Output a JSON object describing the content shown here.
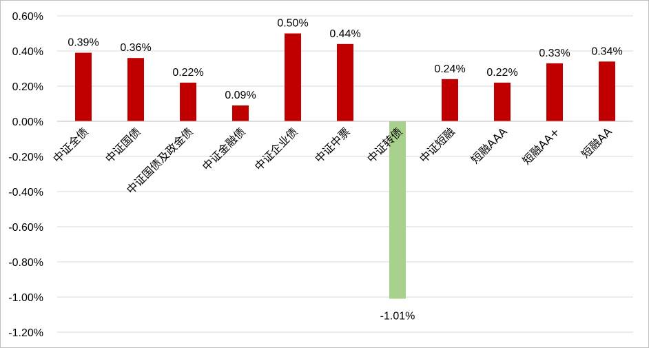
{
  "chart_data": {
    "type": "bar",
    "categories": [
      "中证全债",
      "中证国债",
      "中证国债及政金债",
      "中证金融债",
      "中证企业债",
      "中证中票",
      "中证转债",
      "中证短融",
      "短融AAA",
      "短融AA+",
      "短融AA"
    ],
    "values": [
      0.39,
      0.36,
      0.22,
      0.09,
      0.5,
      0.44,
      -1.01,
      0.24,
      0.22,
      0.33,
      0.34
    ],
    "data_labels": [
      "0.39%",
      "0.36%",
      "0.22%",
      "0.09%",
      "0.50%",
      "0.44%",
      "-1.01%",
      "0.24%",
      "0.22%",
      "0.33%",
      "0.34%"
    ],
    "unit": "%",
    "ylim": [
      -1.2,
      0.6
    ],
    "yticks": [
      0.6,
      0.4,
      0.2,
      0.0,
      -0.2,
      -0.4,
      -0.6,
      -0.8,
      -1.0,
      -1.2
    ],
    "ytick_labels": [
      "0.60%",
      "0.40%",
      "0.20%",
      "0.00%",
      "-0.20%",
      "-0.40%",
      "-0.60%",
      "-0.80%",
      "-1.00%",
      "-1.20%"
    ],
    "grid": true,
    "colors": {
      "positive": "#c00000",
      "negative": "#a9d18e",
      "grid": "#d9d9d9",
      "axis": "#bfbfbf"
    },
    "title": "",
    "xlabel": "",
    "ylabel": ""
  }
}
